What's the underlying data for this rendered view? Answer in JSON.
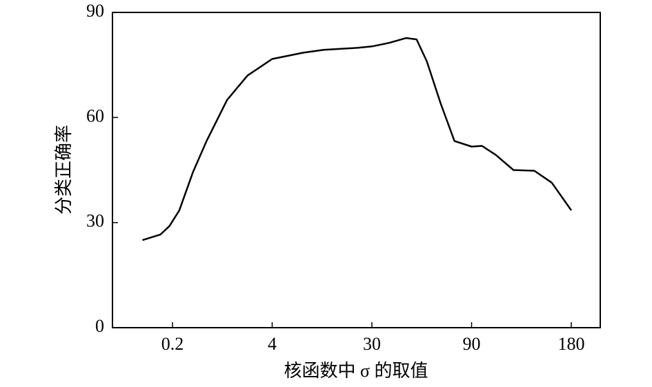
{
  "chart_data": {
    "type": "line",
    "xlabel": "核函数中 σ 的取值",
    "ylabel": "分类正确率",
    "x": [
      0.1,
      0.16,
      0.19,
      0.46,
      0.98,
      1.5,
      2.28,
      3.06,
      4,
      12.1,
      17.4,
      26.4,
      30,
      40.3,
      50.7,
      56.9,
      63.1,
      71.4,
      79.7,
      90,
      99.4,
      112,
      127.8,
      146.6,
      162.4,
      180
    ],
    "series": [
      {
        "color": "#000000",
        "values": [
          25.0,
          26.6,
          29,
          33.5,
          44.4,
          53.3,
          65,
          72,
          76.7,
          78.5,
          79.3,
          79.9,
          80.3,
          81.3,
          82.7,
          82.3,
          76,
          64,
          53.3,
          51.7,
          51.9,
          49.3,
          45,
          44.8,
          41.4,
          33.5
        ]
      }
    ],
    "xlim": [
      0,
      206
    ],
    "xticks": [
      0.2,
      4,
      30,
      90,
      180
    ],
    "xscale": "piecewise",
    "ylim": [
      0,
      90
    ],
    "yticks": [
      0,
      30,
      60,
      90
    ],
    "grid": false
  }
}
